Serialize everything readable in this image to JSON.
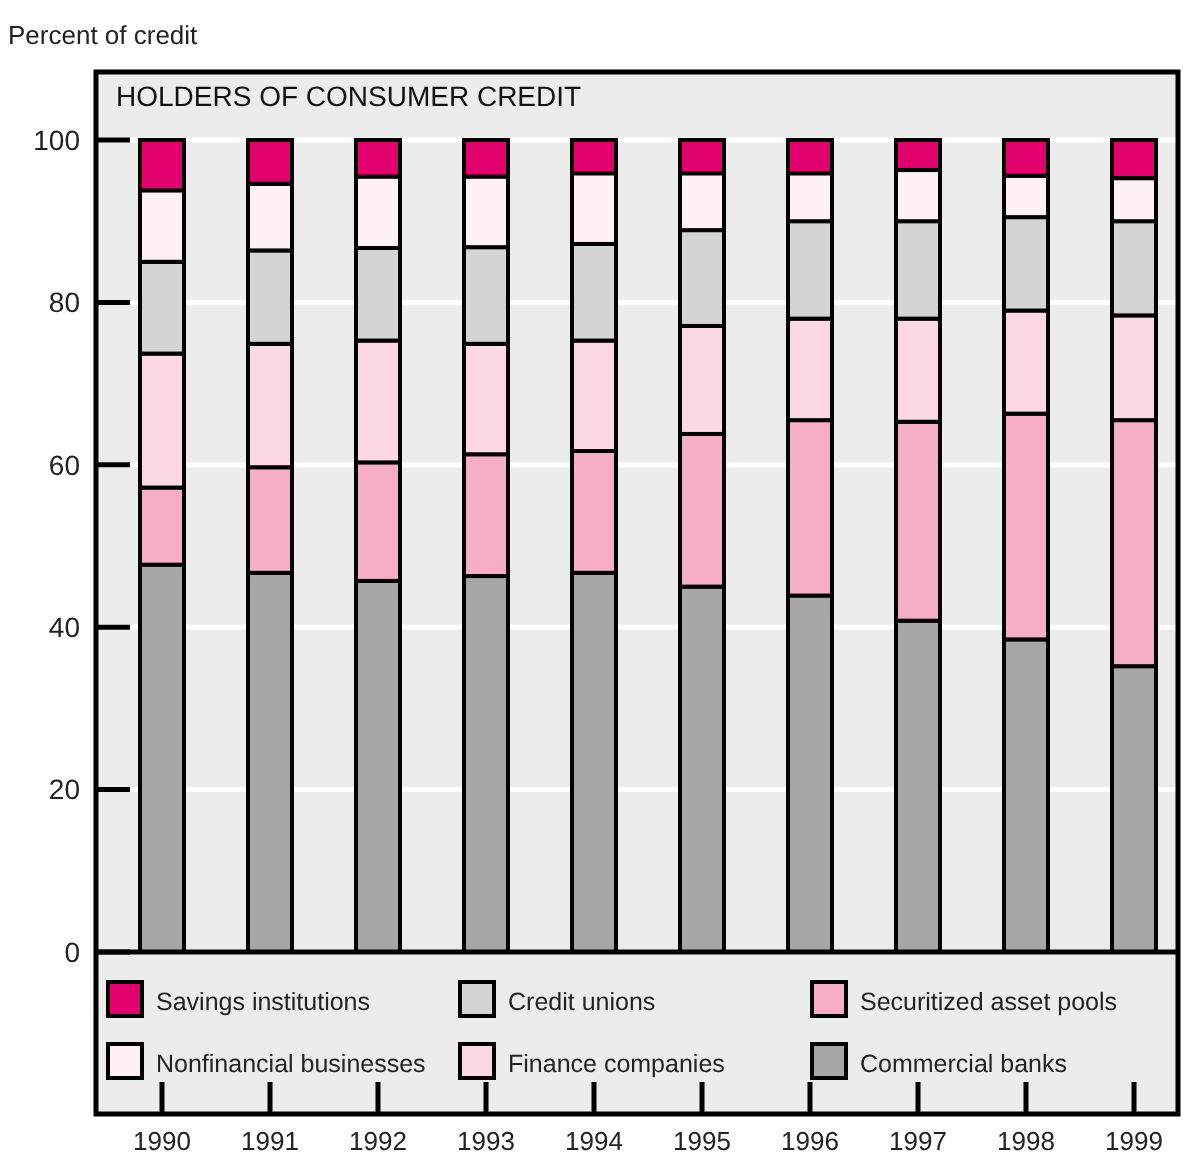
{
  "chart_data": {
    "type": "bar",
    "title": "HOLDERS OF CONSUMER CREDIT",
    "ylabel": "Percent of credit",
    "categories": [
      "1990",
      "1991",
      "1992",
      "1993",
      "1994",
      "1995",
      "1996",
      "1997",
      "1998",
      "1999"
    ],
    "stacked": true,
    "ylim": [
      0,
      100
    ],
    "yticks": [
      0,
      20,
      40,
      60,
      80,
      100
    ],
    "grid": "y",
    "legend": "bottom",
    "series": [
      {
        "name": "Commercial banks",
        "color": "#a6a6a6",
        "values": [
          47.7,
          46.7,
          45.7,
          46.3,
          46.7,
          45.0,
          43.9,
          40.8,
          38.5,
          35.2
        ]
      },
      {
        "name": "Securitized asset pools",
        "color": "#f5aec6",
        "values": [
          9.5,
          13.0,
          14.6,
          15.0,
          15.0,
          18.8,
          21.6,
          24.5,
          27.8,
          30.3
        ]
      },
      {
        "name": "Finance companies",
        "color": "#fcd9e2",
        "values": [
          16.5,
          15.2,
          15.0,
          13.6,
          13.6,
          13.3,
          12.5,
          12.7,
          12.7,
          12.9
        ]
      },
      {
        "name": "Credit unions",
        "color": "#d4d4d4",
        "values": [
          11.3,
          11.5,
          11.4,
          11.9,
          11.9,
          11.8,
          12.0,
          12.0,
          11.5,
          11.6
        ]
      },
      {
        "name": "Nonfinancial businesses",
        "color": "#fff0f3",
        "values": [
          8.8,
          8.2,
          8.8,
          8.7,
          8.7,
          7.0,
          5.9,
          6.3,
          5.1,
          5.3
        ]
      },
      {
        "name": "Savings institutions",
        "color": "#e0006e",
        "values": [
          6.2,
          5.4,
          4.5,
          4.5,
          4.1,
          4.1,
          4.1,
          3.7,
          4.4,
          4.7
        ]
      }
    ]
  }
}
